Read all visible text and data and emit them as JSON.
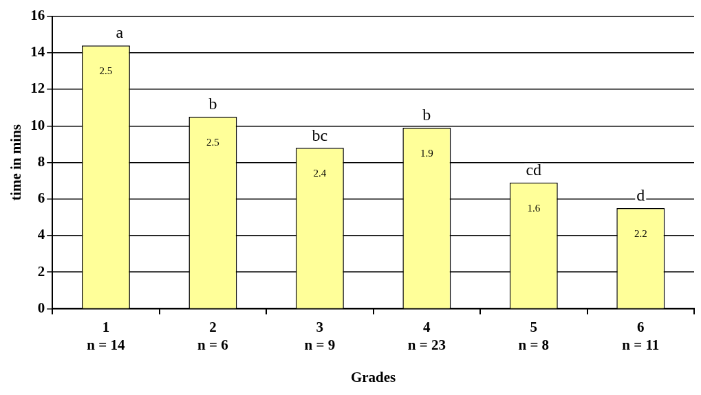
{
  "chart_data": {
    "type": "bar",
    "xlabel": "Grades",
    "ylabel": "time in mins",
    "categories": [
      "1\nn = 14",
      "2\nn = 6",
      "3\nn = 9",
      "4\nn = 23",
      "5\nn = 8",
      "6\nn = 11"
    ],
    "values": [
      14.4,
      10.5,
      8.8,
      9.9,
      6.9,
      5.5
    ],
    "color": "#ffff99",
    "ylim": [
      0,
      16
    ],
    "yticks": [
      0,
      2,
      4,
      6,
      8,
      10,
      12,
      14,
      16
    ],
    "grid": "y",
    "legend": false,
    "annotations": [
      {
        "text": "a",
        "x": "1\nn = 14",
        "y": 14.4
      },
      {
        "text": "b",
        "x": "2\nn = 6",
        "y": 10.5
      },
      {
        "text": "bc",
        "x": "3\nn = 9",
        "y": 8.8
      },
      {
        "text": "b",
        "x": "4\nn = 23",
        "y": 9.9
      },
      {
        "text": "cd",
        "x": "5\nn = 8",
        "y": 6.9
      },
      {
        "text": "d",
        "x": "6\nn = 11",
        "y": 5.5
      },
      {
        "text": "2.5",
        "x": "1\nn = 14",
        "y": 14.4
      },
      {
        "text": "2.5",
        "x": "2\nn = 6",
        "y": 10.5
      },
      {
        "text": "2.4",
        "x": "3\nn = 9",
        "y": 8.8
      },
      {
        "text": "1.9",
        "x": "4\nn = 23",
        "y": 9.9
      },
      {
        "text": "1.6",
        "x": "5\nn = 8",
        "y": 6.9
      },
      {
        "text": "2.2",
        "x": "6\nn = 11",
        "y": 5.5
      }
    ]
  }
}
